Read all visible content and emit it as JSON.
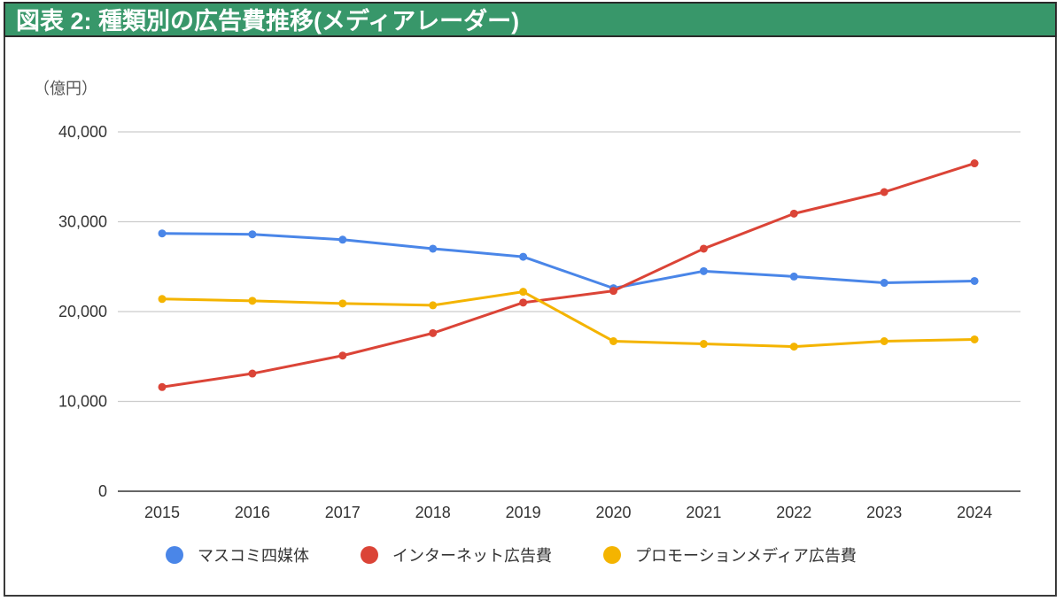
{
  "header": {
    "title": "図表 2: 種類別の広告費推移(メディアレーダー)"
  },
  "colors": {
    "header_bg": "#38976a",
    "mass_media": "#4a86e8",
    "internet": "#db4437",
    "promotion": "#f4b400",
    "grid": "#cccccc",
    "axis": "#333333"
  },
  "chart_data": {
    "type": "line",
    "title": "図表 2: 種類別の広告費推移(メディアレーダー)",
    "unit_label": "（億円）",
    "xlabel": "",
    "ylabel": "（億円）",
    "x": [
      "2015",
      "2016",
      "2017",
      "2018",
      "2019",
      "2020",
      "2021",
      "2022",
      "2023",
      "2024"
    ],
    "ylim": [
      0,
      40000
    ],
    "yticks": [
      0,
      10000,
      20000,
      30000,
      40000
    ],
    "ytick_labels": [
      "0",
      "10,000",
      "20,000",
      "30,000",
      "40,000"
    ],
    "grid": true,
    "legend_position": "bottom",
    "series": [
      {
        "name": "マスコミ四媒体",
        "color": "#4a86e8",
        "values": [
          28700,
          28600,
          28000,
          27000,
          26100,
          22600,
          24500,
          23900,
          23200,
          23400
        ]
      },
      {
        "name": "インターネット広告費",
        "color": "#db4437",
        "values": [
          11600,
          13100,
          15100,
          17600,
          21000,
          22300,
          27000,
          30900,
          33300,
          36500
        ]
      },
      {
        "name": "プロモーションメディア広告費",
        "color": "#f4b400",
        "values": [
          21400,
          21200,
          20900,
          20700,
          22200,
          16700,
          16400,
          16100,
          16700,
          16900
        ]
      }
    ]
  }
}
